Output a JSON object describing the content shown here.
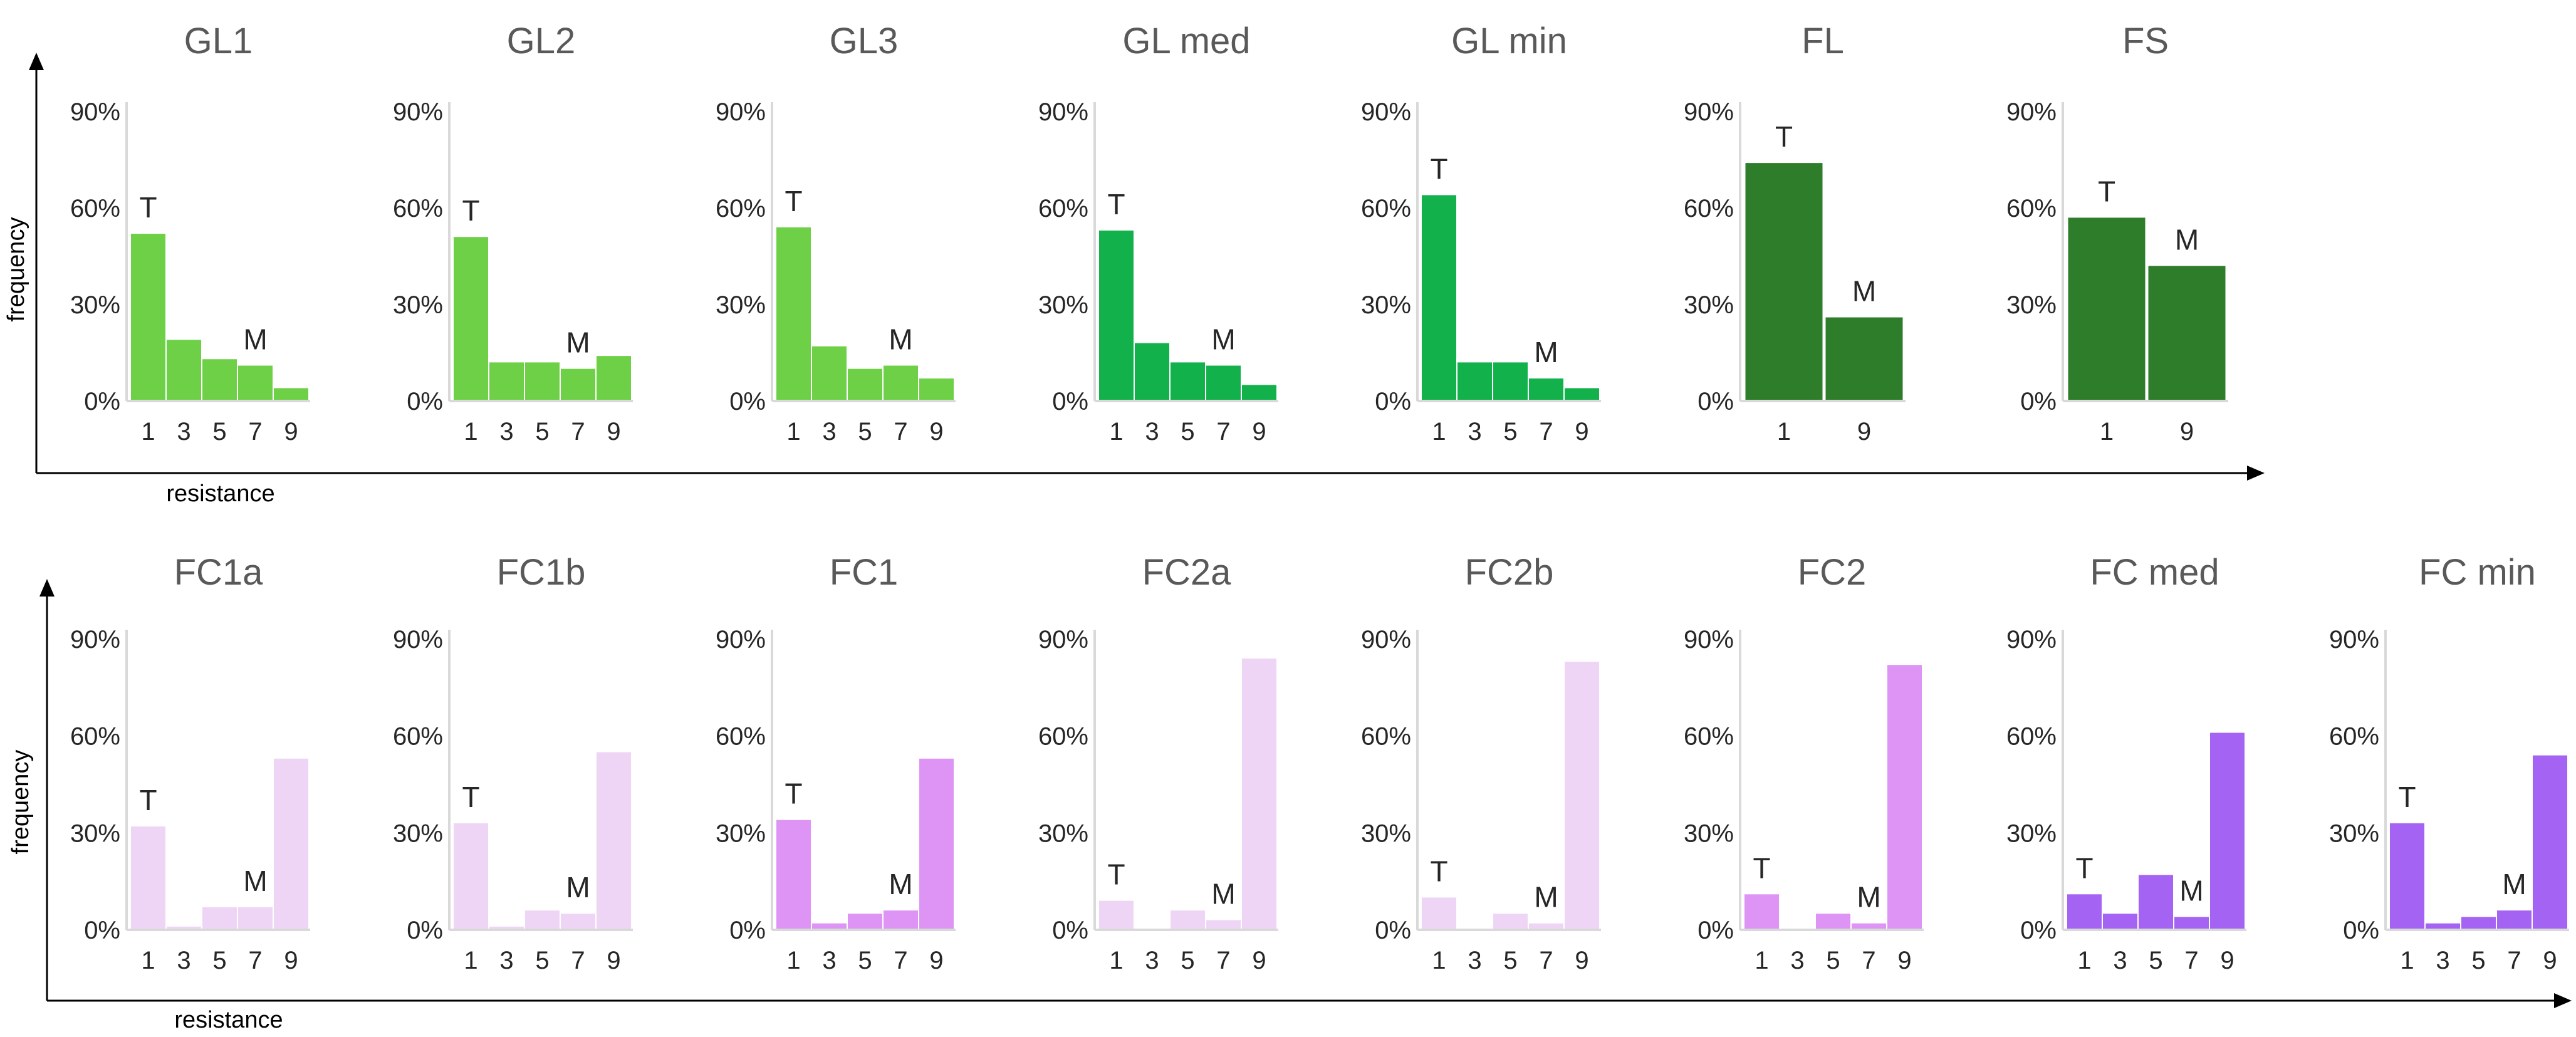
{
  "chart_data": [
    {
      "type": "bar",
      "title": "GL1",
      "categories": [
        "1",
        "3",
        "5",
        "7",
        "9"
      ],
      "values": [
        52,
        19,
        13,
        11,
        4
      ],
      "color": "#6dd047",
      "ylim": [
        0,
        90
      ],
      "yticks": [
        "0%",
        "30%",
        "60%",
        "90%"
      ],
      "annotations": [
        {
          "text": "T",
          "category": "1"
        },
        {
          "text": "M",
          "category": "7"
        }
      ]
    },
    {
      "type": "bar",
      "title": "GL2",
      "categories": [
        "1",
        "3",
        "5",
        "7",
        "9"
      ],
      "values": [
        51,
        12,
        12,
        10,
        14
      ],
      "color": "#6dd047",
      "ylim": [
        0,
        90
      ],
      "yticks": [
        "0%",
        "30%",
        "60%",
        "90%"
      ],
      "annotations": [
        {
          "text": "T",
          "category": "1"
        },
        {
          "text": "M",
          "category": "7"
        }
      ]
    },
    {
      "type": "bar",
      "title": "GL3",
      "categories": [
        "1",
        "3",
        "5",
        "7",
        "9"
      ],
      "values": [
        54,
        17,
        10,
        11,
        7
      ],
      "color": "#6dd047",
      "ylim": [
        0,
        90
      ],
      "yticks": [
        "0%",
        "30%",
        "60%",
        "90%"
      ],
      "annotations": [
        {
          "text": "T",
          "category": "1"
        },
        {
          "text": "M",
          "category": "7"
        }
      ]
    },
    {
      "type": "bar",
      "title": "GL med",
      "categories": [
        "1",
        "3",
        "5",
        "7",
        "9"
      ],
      "values": [
        53,
        18,
        12,
        11,
        5
      ],
      "color": "#12b14b",
      "ylim": [
        0,
        90
      ],
      "yticks": [
        "0%",
        "30%",
        "60%",
        "90%"
      ],
      "annotations": [
        {
          "text": "T",
          "category": "1"
        },
        {
          "text": "M",
          "category": "7"
        }
      ]
    },
    {
      "type": "bar",
      "title": "GL min",
      "categories": [
        "1",
        "3",
        "5",
        "7",
        "9"
      ],
      "values": [
        64,
        12,
        12,
        7,
        4
      ],
      "color": "#12b14b",
      "ylim": [
        0,
        90
      ],
      "yticks": [
        "0%",
        "30%",
        "60%",
        "90%"
      ],
      "annotations": [
        {
          "text": "T",
          "category": "1"
        },
        {
          "text": "M",
          "category": "7"
        }
      ]
    },
    {
      "type": "bar",
      "title": "FL",
      "categories": [
        "1",
        "9"
      ],
      "values": [
        74,
        26
      ],
      "color": "#2e7d2a",
      "ylim": [
        0,
        90
      ],
      "yticks": [
        "0%",
        "30%",
        "60%",
        "90%"
      ],
      "annotations": [
        {
          "text": "T",
          "category": "1"
        },
        {
          "text": "M",
          "category": "9"
        }
      ]
    },
    {
      "type": "bar",
      "title": "FS",
      "categories": [
        "1",
        "9"
      ],
      "values": [
        57,
        42
      ],
      "color": "#2e7d2a",
      "ylim": [
        0,
        90
      ],
      "yticks": [
        "0%",
        "30%",
        "60%",
        "90%"
      ],
      "annotations": [
        {
          "text": "T",
          "category": "1"
        },
        {
          "text": "M",
          "category": "9"
        }
      ]
    },
    {
      "type": "bar",
      "title": "FC1a",
      "categories": [
        "1",
        "3",
        "5",
        "7",
        "9"
      ],
      "values": [
        32,
        1,
        7,
        7,
        53
      ],
      "color": "#efd5f5",
      "ylim": [
        0,
        90
      ],
      "yticks": [
        "0%",
        "30%",
        "60%",
        "90%"
      ],
      "annotations": [
        {
          "text": "T",
          "category": "1"
        },
        {
          "text": "M",
          "category": "7"
        }
      ]
    },
    {
      "type": "bar",
      "title": "FC1b",
      "categories": [
        "1",
        "3",
        "5",
        "7",
        "9"
      ],
      "values": [
        33,
        1,
        6,
        5,
        55
      ],
      "color": "#efd5f5",
      "ylim": [
        0,
        90
      ],
      "yticks": [
        "0%",
        "30%",
        "60%",
        "90%"
      ],
      "annotations": [
        {
          "text": "T",
          "category": "1"
        },
        {
          "text": "M",
          "category": "7"
        }
      ]
    },
    {
      "type": "bar",
      "title": "FC1",
      "categories": [
        "1",
        "3",
        "5",
        "7",
        "9"
      ],
      "values": [
        34,
        2,
        5,
        6,
        53
      ],
      "color": "#dd94f5",
      "ylim": [
        0,
        90
      ],
      "yticks": [
        "0%",
        "30%",
        "60%",
        "90%"
      ],
      "annotations": [
        {
          "text": "T",
          "category": "1"
        },
        {
          "text": "M",
          "category": "7"
        }
      ]
    },
    {
      "type": "bar",
      "title": "FC2a",
      "categories": [
        "1",
        "3",
        "5",
        "7",
        "9"
      ],
      "values": [
        9,
        0,
        6,
        3,
        84
      ],
      "color": "#efd5f5",
      "ylim": [
        0,
        90
      ],
      "yticks": [
        "0%",
        "30%",
        "60%",
        "90%"
      ],
      "annotations": [
        {
          "text": "T",
          "category": "1"
        },
        {
          "text": "M",
          "category": "7"
        }
      ]
    },
    {
      "type": "bar",
      "title": "FC2b",
      "categories": [
        "1",
        "3",
        "5",
        "7",
        "9"
      ],
      "values": [
        10,
        0,
        5,
        2,
        83
      ],
      "color": "#efd5f5",
      "ylim": [
        0,
        90
      ],
      "yticks": [
        "0%",
        "30%",
        "60%",
        "90%"
      ],
      "annotations": [
        {
          "text": "T",
          "category": "1"
        },
        {
          "text": "M",
          "category": "7"
        }
      ]
    },
    {
      "type": "bar",
      "title": "FC2",
      "categories": [
        "1",
        "3",
        "5",
        "7",
        "9"
      ],
      "values": [
        11,
        0,
        5,
        2,
        82
      ],
      "color": "#dd94f5",
      "ylim": [
        0,
        90
      ],
      "yticks": [
        "0%",
        "30%",
        "60%",
        "90%"
      ],
      "annotations": [
        {
          "text": "T",
          "category": "1"
        },
        {
          "text": "M",
          "category": "7"
        }
      ]
    },
    {
      "type": "bar",
      "title": "FC med",
      "categories": [
        "1",
        "3",
        "5",
        "7",
        "9"
      ],
      "values": [
        11,
        5,
        17,
        4,
        61
      ],
      "color": "#a463f2",
      "ylim": [
        0,
        90
      ],
      "yticks": [
        "0%",
        "30%",
        "60%",
        "90%"
      ],
      "annotations": [
        {
          "text": "T",
          "category": "1"
        },
        {
          "text": "M",
          "category": "7"
        }
      ]
    },
    {
      "type": "bar",
      "title": "FC min",
      "categories": [
        "1",
        "3",
        "5",
        "7",
        "9"
      ],
      "values": [
        33,
        2,
        4,
        6,
        54
      ],
      "color": "#a463f2",
      "ylim": [
        0,
        90
      ],
      "yticks": [
        "0%",
        "30%",
        "60%",
        "90%"
      ],
      "annotations": [
        {
          "text": "T",
          "category": "1"
        },
        {
          "text": "M",
          "category": "7"
        }
      ]
    }
  ],
  "axes": {
    "ylabel": "frequency",
    "xlabel": "resistance",
    "axis_color": "#000000",
    "panel_axis_color": "#d9d9d9"
  }
}
